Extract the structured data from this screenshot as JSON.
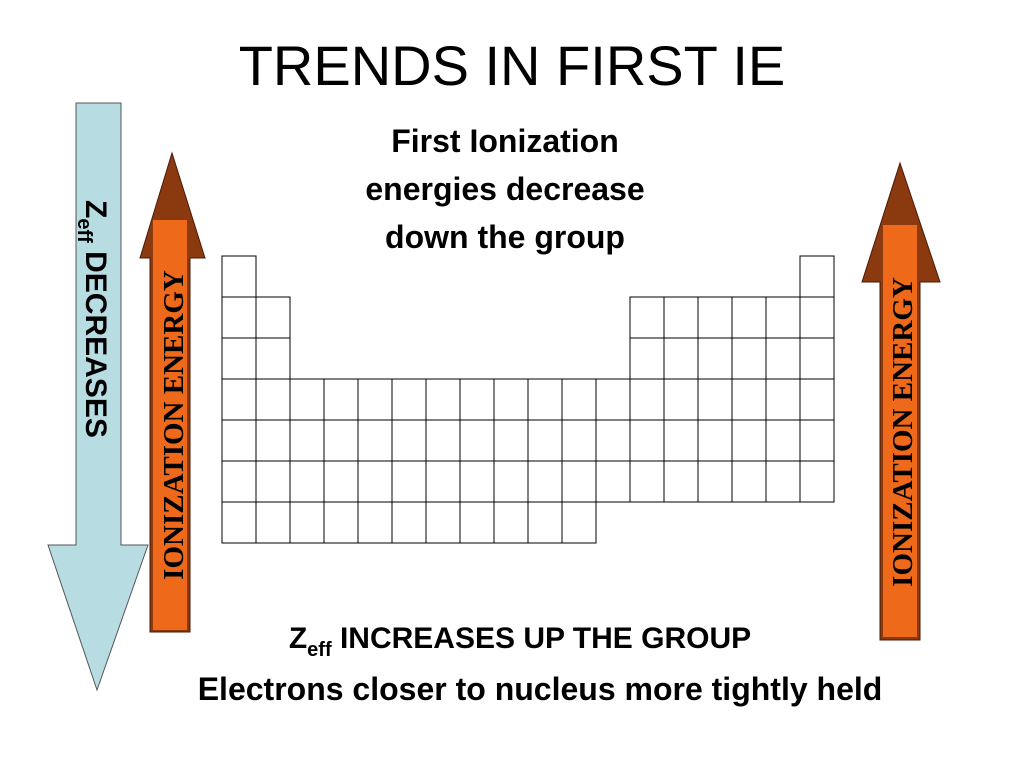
{
  "title": "TRENDS IN FIRST IE",
  "subtitle": {
    "lines": [
      "First Ionization",
      "energies decrease",
      "down the group"
    ]
  },
  "left_arrow": {
    "symbol": "Z",
    "subscript": "eff",
    "text": "DECREASES"
  },
  "ionization_left": "IONIZATION ENERGY",
  "ionization_right": "IONIZATION ENERGY",
  "bottom": {
    "symbol": "Z",
    "subscript": "eff",
    "line1": "INCREASES UP THE GROUP",
    "line2": "Electrons closer to nucleus more tightly held"
  }
}
